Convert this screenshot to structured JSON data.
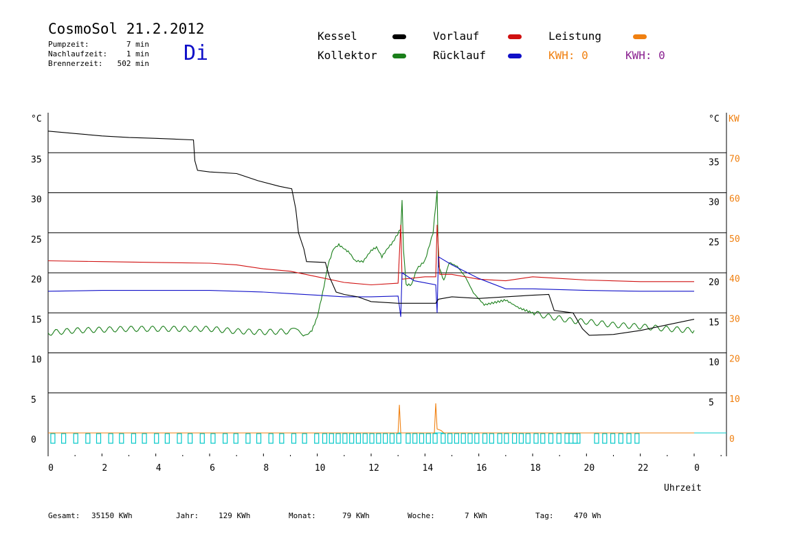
{
  "header": {
    "title": "CosmoSol 21.2.2012",
    "day": "Di",
    "info": [
      {
        "label": "Pumpzeit:",
        "value": "7 min"
      },
      {
        "label": "Nachlaufzeit:",
        "value": "1 min"
      },
      {
        "label": "Brennerzeit:",
        "value": "502 min"
      }
    ]
  },
  "legend": {
    "kessel": "Kessel",
    "kollektor": "Kollektor",
    "vorlauf": "Vorlauf",
    "ruecklauf": "Rücklauf",
    "leistung": "Leistung",
    "kwh1": "KWH: 0",
    "kwh2": "KWH: 0"
  },
  "colors": {
    "kessel": "#000000",
    "kollektor": "#1a7f1a",
    "vorlauf": "#d01010",
    "ruecklauf": "#1010c8",
    "leistung": "#f08010",
    "kwh2": "#8a2090",
    "pump": "#00c8c8"
  },
  "footer": {
    "gesamt_label": "Gesamt:",
    "gesamt_value": "35150 KWh",
    "jahr_label": "Jahr:",
    "jahr_value": "129 KWh",
    "monat_label": "Monat:",
    "monat_value": "79 KWh",
    "woche_label": "Woche:",
    "woche_value": "7 KWh",
    "tag_label": "Tag:",
    "tag_value": "470 Wh"
  },
  "chart_data": {
    "type": "line",
    "xlabel": "Uhrzeit",
    "ylabel_left": "°C",
    "ylabel_right_temp": "°C",
    "ylabel_right_power": "KW",
    "xlim": [
      0,
      24
    ],
    "ylim": [
      -2,
      40
    ],
    "x_ticks": [
      "0",
      "2",
      "4",
      "6",
      "8",
      "10",
      "12",
      "14",
      "16",
      "18",
      "20",
      "22",
      "0"
    ],
    "y_ticks_left": [
      "0",
      "5",
      "10",
      "15",
      "20",
      "25",
      "30",
      "35"
    ],
    "y_ticks_right_temp": [
      "5",
      "10",
      "15",
      "20",
      "25",
      "30",
      "35"
    ],
    "y_ticks_right_power": [
      "0",
      "10",
      "20",
      "30",
      "40",
      "50",
      "60",
      "70"
    ],
    "grid_y": [
      0,
      5,
      10,
      15,
      20,
      25,
      30,
      35
    ],
    "series": [
      {
        "key": "kessel",
        "name": "Kessel",
        "points": [
          [
            0,
            37.7
          ],
          [
            1,
            37.4
          ],
          [
            2,
            37.1
          ],
          [
            3,
            36.9
          ],
          [
            4,
            36.8
          ],
          [
            5.4,
            36.6
          ],
          [
            5.45,
            34
          ],
          [
            5.55,
            32.8
          ],
          [
            6,
            32.6
          ],
          [
            7,
            32.4
          ],
          [
            7.8,
            31.5
          ],
          [
            8.6,
            30.8
          ],
          [
            9.05,
            30.5
          ],
          [
            9.2,
            28
          ],
          [
            9.3,
            25
          ],
          [
            9.5,
            23
          ],
          [
            9.6,
            21.4
          ],
          [
            10.3,
            21.3
          ],
          [
            10.45,
            19.5
          ],
          [
            10.7,
            17.6
          ],
          [
            11,
            17.3
          ],
          [
            11.5,
            17
          ],
          [
            12,
            16.4
          ],
          [
            13,
            16.2
          ],
          [
            14.4,
            16.2
          ],
          [
            14.5,
            16.7
          ],
          [
            15,
            17
          ],
          [
            16,
            16.8
          ],
          [
            17,
            17
          ],
          [
            18,
            17.2
          ],
          [
            18.6,
            17.3
          ],
          [
            18.8,
            15.3
          ],
          [
            19.5,
            15
          ],
          [
            19.85,
            13
          ],
          [
            20.1,
            12.2
          ],
          [
            21,
            12.3
          ],
          [
            22,
            12.8
          ],
          [
            23,
            13.5
          ],
          [
            24,
            14.2
          ]
        ]
      },
      {
        "key": "vorlauf",
        "name": "Vorlauf",
        "points": [
          [
            0,
            21.5
          ],
          [
            2,
            21.4
          ],
          [
            4,
            21.3
          ],
          [
            6,
            21.2
          ],
          [
            7,
            21
          ],
          [
            8,
            20.5
          ],
          [
            9,
            20.2
          ],
          [
            10,
            19.5
          ],
          [
            11,
            18.8
          ],
          [
            12,
            18.5
          ],
          [
            13,
            18.7
          ],
          [
            13.1,
            26
          ],
          [
            13.15,
            19.2
          ],
          [
            14,
            19.5
          ],
          [
            14.4,
            19.5
          ],
          [
            14.45,
            26
          ],
          [
            14.55,
            19.8
          ],
          [
            15,
            19.8
          ],
          [
            16,
            19.2
          ],
          [
            17,
            19
          ],
          [
            18,
            19.5
          ],
          [
            19,
            19.3
          ],
          [
            20,
            19.1
          ],
          [
            22,
            18.9
          ],
          [
            24,
            18.9
          ]
        ]
      },
      {
        "key": "ruecklauf",
        "name": "Rücklauf",
        "points": [
          [
            0,
            17.7
          ],
          [
            2,
            17.8
          ],
          [
            4,
            17.8
          ],
          [
            6,
            17.8
          ],
          [
            8,
            17.6
          ],
          [
            9,
            17.4
          ],
          [
            10,
            17.2
          ],
          [
            11,
            17
          ],
          [
            12,
            17
          ],
          [
            13,
            17.1
          ],
          [
            13.1,
            14.5
          ],
          [
            13.15,
            20
          ],
          [
            13.6,
            19
          ],
          [
            14.4,
            18.5
          ],
          [
            14.45,
            15
          ],
          [
            14.5,
            22
          ],
          [
            15,
            21
          ],
          [
            16,
            19.3
          ],
          [
            17,
            18
          ],
          [
            18,
            18
          ],
          [
            20,
            17.8
          ],
          [
            22,
            17.7
          ],
          [
            24,
            17.7
          ]
        ]
      },
      {
        "key": "kollektor",
        "name": "Kollektor",
        "points": [
          [
            0,
            12.5
          ],
          [
            1,
            12.8
          ],
          [
            2,
            12.9
          ],
          [
            3,
            13
          ],
          [
            4,
            13
          ],
          [
            5,
            13
          ],
          [
            6,
            13
          ],
          [
            7,
            12.7
          ],
          [
            8,
            12.6
          ],
          [
            9,
            12.7
          ],
          [
            9.3,
            12.8
          ],
          [
            9.6,
            12.2
          ],
          [
            9.8,
            12.8
          ],
          [
            10,
            14.5
          ],
          [
            10.2,
            17.5
          ],
          [
            10.4,
            21
          ],
          [
            10.6,
            23
          ],
          [
            10.8,
            23.5
          ],
          [
            11,
            23
          ],
          [
            11.2,
            22.5
          ],
          [
            11.4,
            21.5
          ],
          [
            11.7,
            21.4
          ],
          [
            12,
            22.8
          ],
          [
            12.2,
            23.2
          ],
          [
            12.4,
            22
          ],
          [
            12.6,
            23
          ],
          [
            12.8,
            23.8
          ],
          [
            13.1,
            25.5
          ],
          [
            13.15,
            29
          ],
          [
            13.2,
            23
          ],
          [
            13.3,
            18.5
          ],
          [
            13.5,
            18.5
          ],
          [
            13.7,
            20.5
          ],
          [
            14,
            21.5
          ],
          [
            14.3,
            25
          ],
          [
            14.45,
            30.2
          ],
          [
            14.5,
            21
          ],
          [
            14.7,
            19
          ],
          [
            14.9,
            21.3
          ],
          [
            15.2,
            20.8
          ],
          [
            15.5,
            19.5
          ],
          [
            15.8,
            17.5
          ],
          [
            16.2,
            16
          ],
          [
            16.6,
            16.3
          ],
          [
            17,
            16.6
          ],
          [
            17.5,
            15.6
          ],
          [
            18,
            15
          ],
          [
            18.5,
            14.6
          ],
          [
            19,
            14.3
          ],
          [
            19.5,
            14
          ],
          [
            20,
            13.9
          ],
          [
            21,
            13.5
          ],
          [
            22,
            13.3
          ],
          [
            23,
            13
          ],
          [
            24,
            12.8
          ]
        ]
      },
      {
        "key": "leistung",
        "name": "Leistung",
        "points": [
          [
            0,
            0
          ],
          [
            13.0,
            0
          ],
          [
            13.05,
            3.5
          ],
          [
            13.1,
            0
          ],
          [
            14.35,
            0
          ],
          [
            14.4,
            3.7
          ],
          [
            14.45,
            0.5
          ],
          [
            14.6,
            0.3
          ],
          [
            14.7,
            0
          ],
          [
            24,
            0
          ]
        ]
      }
    ],
    "pump_pulses_hours": [
      0.1,
      0.5,
      0.95,
      1.4,
      1.8,
      2.25,
      2.65,
      3.1,
      3.5,
      3.95,
      4.35,
      4.8,
      5.2,
      5.65,
      6.05,
      6.5,
      6.9,
      7.35,
      7.75,
      8.2,
      8.6,
      9.05,
      9.45,
      9.9,
      10.2,
      10.45,
      10.7,
      10.95,
      11.2,
      11.45,
      11.7,
      11.95,
      12.2,
      12.45,
      12.7,
      12.95,
      13.3,
      13.55,
      13.8,
      14.05,
      14.3,
      14.6,
      14.85,
      15.1,
      15.35,
      15.6,
      15.85,
      16.15,
      16.4,
      16.7,
      16.95,
      17.25,
      17.5,
      17.75,
      18.05,
      18.3,
      18.6,
      18.9,
      19.2,
      19.5,
      20.3,
      20.6,
      20.9,
      21.2,
      21.5,
      21.8
    ]
  }
}
